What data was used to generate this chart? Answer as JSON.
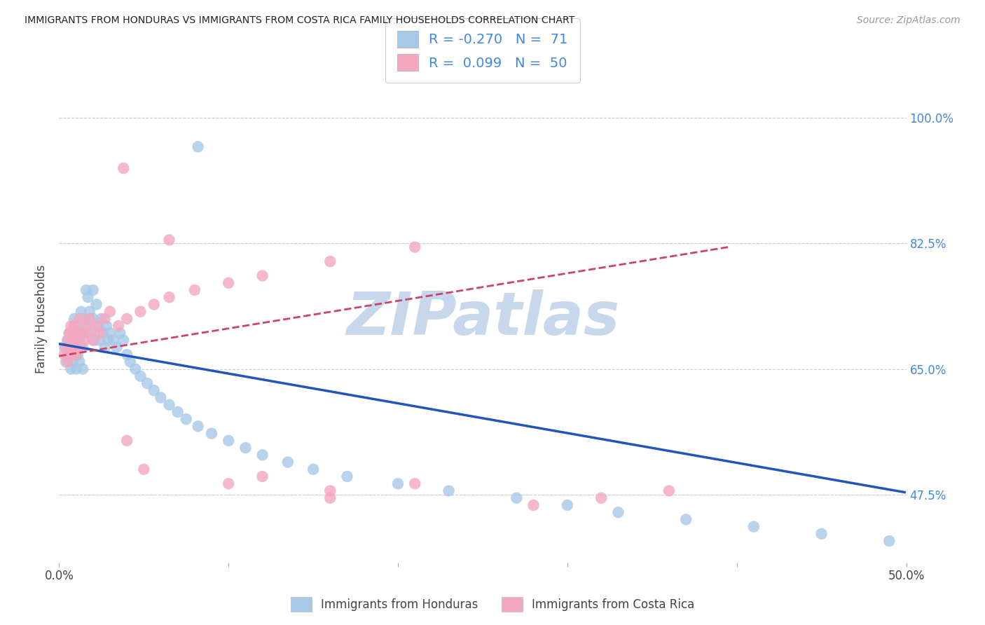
{
  "title": "IMMIGRANTS FROM HONDURAS VS IMMIGRANTS FROM COSTA RICA FAMILY HOUSEHOLDS CORRELATION CHART",
  "source": "Source: ZipAtlas.com",
  "ylabel": "Family Households",
  "ytick_vals": [
    0.475,
    0.65,
    0.825,
    1.0
  ],
  "ytick_labels": [
    "47.5%",
    "65.0%",
    "82.5%",
    "100.0%"
  ],
  "xlim": [
    0.0,
    0.5
  ],
  "ylim": [
    0.38,
    1.06
  ],
  "legend_r_honduras": "-0.270",
  "legend_n_honduras": "71",
  "legend_r_costarica": "0.099",
  "legend_n_costarica": "50",
  "color_honduras": "#a8c8e8",
  "color_costarica": "#f4a8c0",
  "line_color_honduras": "#2255bb",
  "line_color_costarica": "#cc4466",
  "watermark_text": "ZIPatlas",
  "watermark_color": "#c8d8ec",
  "bg_color": "#ffffff",
  "grid_color": "#cccccc",
  "tick_color": "#4488dd",
  "title_color": "#222222",
  "source_color": "#999999",
  "label_color": "#444444",
  "hon_line_x0": 0.0,
  "hon_line_x1": 0.499,
  "hon_line_y0": 0.685,
  "hon_line_y1": 0.478,
  "cr_line_x0": 0.0,
  "cr_line_x1": 0.395,
  "cr_line_y0": 0.668,
  "cr_line_y1": 0.82,
  "hon_x": [
    0.003,
    0.004,
    0.005,
    0.006,
    0.006,
    0.007,
    0.007,
    0.008,
    0.008,
    0.009,
    0.009,
    0.01,
    0.01,
    0.011,
    0.011,
    0.012,
    0.012,
    0.013,
    0.013,
    0.014,
    0.014,
    0.015,
    0.016,
    0.016,
    0.017,
    0.018,
    0.019,
    0.02,
    0.02,
    0.021,
    0.022,
    0.023,
    0.024,
    0.025,
    0.026,
    0.027,
    0.028,
    0.029,
    0.03,
    0.032,
    0.034,
    0.036,
    0.038,
    0.04,
    0.042,
    0.045,
    0.048,
    0.052,
    0.056,
    0.06,
    0.065,
    0.07,
    0.075,
    0.082,
    0.09,
    0.1,
    0.11,
    0.12,
    0.135,
    0.15,
    0.17,
    0.2,
    0.23,
    0.27,
    0.3,
    0.33,
    0.37,
    0.41,
    0.45,
    0.49,
    0.082
  ],
  "hon_y": [
    0.68,
    0.66,
    0.69,
    0.7,
    0.67,
    0.68,
    0.65,
    0.69,
    0.66,
    0.7,
    0.72,
    0.68,
    0.65,
    0.71,
    0.67,
    0.69,
    0.66,
    0.7,
    0.73,
    0.68,
    0.65,
    0.72,
    0.76,
    0.71,
    0.75,
    0.73,
    0.7,
    0.76,
    0.72,
    0.69,
    0.74,
    0.71,
    0.69,
    0.72,
    0.7,
    0.68,
    0.71,
    0.69,
    0.7,
    0.69,
    0.68,
    0.7,
    0.69,
    0.67,
    0.66,
    0.65,
    0.64,
    0.63,
    0.62,
    0.61,
    0.6,
    0.59,
    0.58,
    0.57,
    0.56,
    0.55,
    0.54,
    0.53,
    0.52,
    0.51,
    0.5,
    0.49,
    0.48,
    0.47,
    0.46,
    0.45,
    0.44,
    0.43,
    0.42,
    0.41,
    0.96
  ],
  "cr_x": [
    0.003,
    0.004,
    0.005,
    0.005,
    0.006,
    0.006,
    0.007,
    0.007,
    0.008,
    0.008,
    0.009,
    0.009,
    0.01,
    0.01,
    0.011,
    0.012,
    0.012,
    0.013,
    0.014,
    0.015,
    0.016,
    0.017,
    0.018,
    0.02,
    0.022,
    0.024,
    0.027,
    0.03,
    0.035,
    0.04,
    0.048,
    0.056,
    0.065,
    0.08,
    0.1,
    0.12,
    0.16,
    0.21,
    0.04,
    0.16,
    0.28,
    0.32,
    0.36,
    0.16,
    0.065,
    0.1,
    0.12,
    0.05,
    0.21,
    0.038
  ],
  "cr_y": [
    0.67,
    0.68,
    0.69,
    0.66,
    0.7,
    0.68,
    0.71,
    0.67,
    0.7,
    0.68,
    0.69,
    0.71,
    0.67,
    0.69,
    0.68,
    0.7,
    0.72,
    0.68,
    0.7,
    0.69,
    0.71,
    0.7,
    0.72,
    0.69,
    0.71,
    0.7,
    0.72,
    0.73,
    0.71,
    0.72,
    0.73,
    0.74,
    0.75,
    0.76,
    0.77,
    0.78,
    0.8,
    0.82,
    0.55,
    0.47,
    0.46,
    0.47,
    0.48,
    0.48,
    0.83,
    0.49,
    0.5,
    0.51,
    0.49,
    0.93
  ]
}
